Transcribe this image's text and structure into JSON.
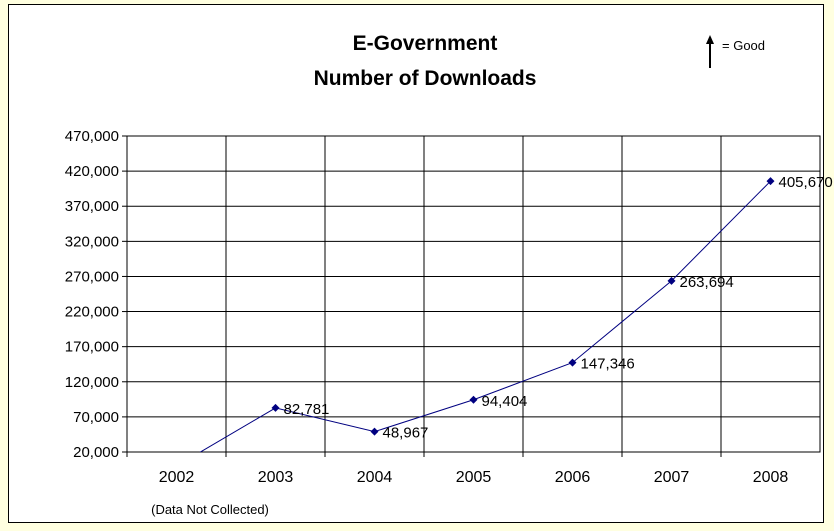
{
  "chart_data": {
    "type": "line",
    "title": "E-Government",
    "subtitle": "Number of Downloads",
    "legend_note": "= Good",
    "categories": [
      "2002",
      "2003",
      "2004",
      "2005",
      "2006",
      "2007",
      "2008"
    ],
    "category_note": "(Data Not Collected)",
    "series": [
      {
        "values": [
          0,
          82781,
          48967,
          94404,
          147346,
          263694,
          405670
        ],
        "data_labels": [
          "",
          "82,781",
          "48,967",
          "94,404",
          "147,346",
          "263,694",
          "405,670"
        ]
      }
    ],
    "ylim": [
      20000,
      470000
    ],
    "yticks": [
      "470,000",
      "420,000",
      "370,000",
      "320,000",
      "270,000",
      "220,000",
      "170,000",
      "120,000",
      "70,000",
      "20,000"
    ],
    "grid": true,
    "colors": {
      "line": "#000080",
      "grid": "#000000",
      "page_bg": "#ffffe0"
    }
  }
}
